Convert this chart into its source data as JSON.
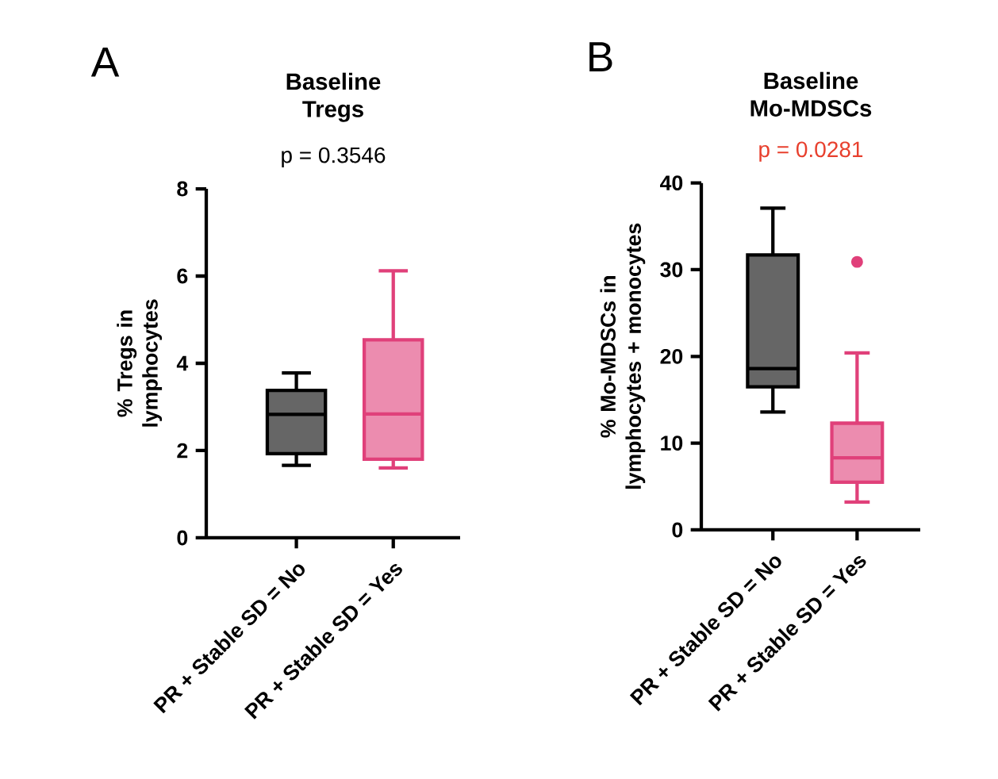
{
  "chart_data": [
    {
      "type": "box",
      "title": "Baseline Tregs",
      "subtitle": "p = 0.3546",
      "ylabel": "% Tregs in lymphocytes",
      "categories": [
        "PR + Stable SD = No",
        "PR + Stable SD = Yes"
      ],
      "boxes": [
        {
          "low": 1.66,
          "q1": 1.93,
          "median": 2.83,
          "q3": 3.38,
          "high": 3.78
        },
        {
          "low": 1.6,
          "q1": 1.8,
          "median": 2.84,
          "q3": 4.54,
          "high": 6.12
        }
      ],
      "colors": [
        "#000000",
        "#e0407a"
      ],
      "ylim": [
        0,
        8
      ],
      "yticks": [
        0,
        2,
        4,
        6,
        8
      ],
      "annotations": [
        "A"
      ]
    },
    {
      "type": "box",
      "title": "Baseline Mo-MDSCs",
      "subtitle": "p = 0.0281",
      "ylabel": "% Mo-MDSCs in lymphocytes + monocytes",
      "categories": [
        "PR + Stable SD = No",
        "PR + Stable SD = Yes"
      ],
      "boxes": [
        {
          "low": 13.6,
          "q1": 16.5,
          "median": 18.6,
          "q3": 31.7,
          "high": 37.1
        },
        {
          "low": 3.2,
          "q1": 5.5,
          "median": 8.3,
          "q3": 12.3,
          "high": 20.4,
          "outliers": [
            30.9
          ]
        }
      ],
      "colors": [
        "#000000",
        "#e0407a"
      ],
      "ylim": [
        0,
        40
      ],
      "yticks": [
        0,
        10,
        20,
        30,
        40
      ],
      "annotations": [
        "B"
      ]
    }
  ]
}
